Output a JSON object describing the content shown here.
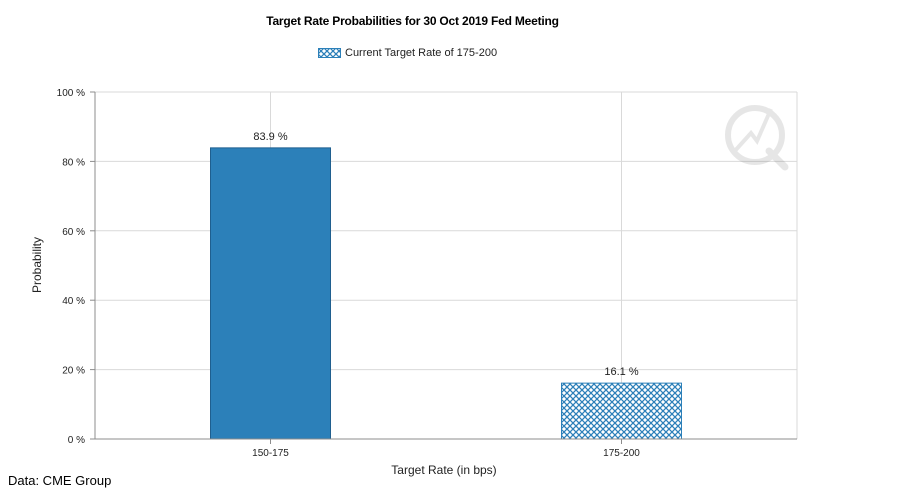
{
  "chart_data": {
    "type": "bar",
    "title": "Target Rate Probabilities for 30 Oct 2019 Fed Meeting",
    "xlabel": "Target Rate (in bps)",
    "ylabel": "Probability",
    "categories": [
      "150-175",
      "175-200"
    ],
    "values": [
      83.9,
      16.1
    ],
    "value_labels": [
      "83.9 %",
      "16.1 %"
    ],
    "ylim": [
      0,
      100
    ],
    "yticks": [
      0,
      20,
      40,
      60,
      80,
      100
    ],
    "ytick_labels": [
      "0 %",
      "20 %",
      "40 %",
      "60 %",
      "80 %",
      "100 %"
    ],
    "grid": true,
    "legend": {
      "position": "top-center",
      "label": "Current Target Rate of 175-200"
    },
    "highlighted_category": "175-200",
    "colors": {
      "bar": "#2c80b9",
      "bar_edge": "#1f5f8f",
      "hatch": "#2c80b9",
      "grid": "#d9d9d9",
      "axis": "#8c8c8c"
    }
  },
  "source_note": "Data: CME Group"
}
